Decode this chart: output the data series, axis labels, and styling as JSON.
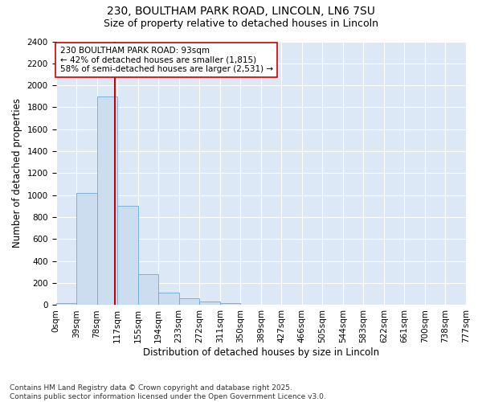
{
  "title1": "230, BOULTHAM PARK ROAD, LINCOLN, LN6 7SU",
  "title2": "Size of property relative to detached houses in Lincoln",
  "xlabel": "Distribution of detached houses by size in Lincoln",
  "ylabel": "Number of detached properties",
  "bar_values": [
    20,
    1020,
    1900,
    900,
    280,
    115,
    60,
    30,
    20,
    5,
    2,
    1,
    0,
    0,
    0,
    0,
    0,
    0,
    0,
    0
  ],
  "bin_labels": [
    "0sqm",
    "39sqm",
    "78sqm",
    "117sqm",
    "155sqm",
    "194sqm",
    "233sqm",
    "272sqm",
    "311sqm",
    "350sqm",
    "389sqm",
    "427sqm",
    "466sqm",
    "505sqm",
    "544sqm",
    "583sqm",
    "622sqm",
    "661sqm",
    "700sqm",
    "738sqm",
    "777sqm"
  ],
  "bar_color": "#ccddf0",
  "bar_edge_color": "#6aaad4",
  "vline_color": "#cc0000",
  "annotation_text": "230 BOULTHAM PARK ROAD: 93sqm\n← 42% of detached houses are smaller (1,815)\n58% of semi-detached houses are larger (2,531) →",
  "annotation_box_color": "#ffffff",
  "annotation_box_edge": "#cc0000",
  "ylim": [
    0,
    2400
  ],
  "bg_color": "#dce8f5",
  "footer": "Contains HM Land Registry data © Crown copyright and database right 2025.\nContains public sector information licensed under the Open Government Licence v3.0.",
  "title_fontsize": 10,
  "subtitle_fontsize": 9,
  "axis_label_fontsize": 8.5,
  "tick_fontsize": 7.5,
  "annot_fontsize": 7.5,
  "footer_fontsize": 6.5
}
